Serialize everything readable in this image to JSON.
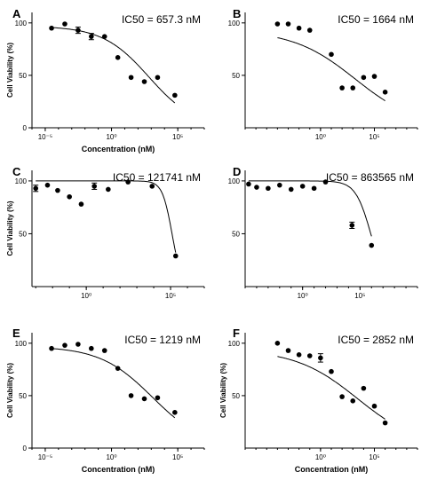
{
  "chart_data": [
    {
      "panel": "A",
      "type": "scatter",
      "ic50_label": "IC50 = 657.3 nM",
      "xlabel": "Concentration (nM)",
      "ylabel": "Cell Viability (%)",
      "xscale": "log",
      "xlim": [
        1e-06,
        10000000
      ],
      "ylim": [
        0,
        110
      ],
      "xticks": [
        {
          "v": 1e-05,
          "label": "10⁻⁵"
        },
        {
          "v": 1,
          "label": "10⁰"
        },
        {
          "v": 100000,
          "label": "10⁵"
        }
      ],
      "yticks": [
        0,
        50,
        100
      ],
      "points": [
        {
          "x": 3e-05,
          "y": 95
        },
        {
          "x": 0.0003,
          "y": 99
        },
        {
          "x": 0.003,
          "y": 93,
          "err": 3
        },
        {
          "x": 0.03,
          "y": 87,
          "err": 3
        },
        {
          "x": 0.3,
          "y": 87
        },
        {
          "x": 3,
          "y": 67
        },
        {
          "x": 30,
          "y": 48
        },
        {
          "x": 300,
          "y": 44
        },
        {
          "x": 3000,
          "y": 48
        },
        {
          "x": 60000,
          "y": 31
        }
      ],
      "fit": {
        "ic50": 657.3,
        "top": 97,
        "bottom": 0,
        "hill": 0.25
      }
    },
    {
      "panel": "B",
      "type": "scatter",
      "ic50_label": "IC50 = 1664 nM",
      "xlabel": "",
      "ylabel": "",
      "xscale": "log",
      "xlim": [
        1e-07,
        1000000000
      ],
      "ylim": [
        0,
        110
      ],
      "xticks": [
        {
          "v": 1,
          "label": "10⁰"
        },
        {
          "v": 100000,
          "label": "10⁵"
        }
      ],
      "yticks": [
        50,
        100
      ],
      "points": [
        {
          "x": 0.0001,
          "y": 99
        },
        {
          "x": 0.001,
          "y": 99
        },
        {
          "x": 0.01,
          "y": 95
        },
        {
          "x": 0.1,
          "y": 93
        },
        {
          "x": 10,
          "y": 70
        },
        {
          "x": 100,
          "y": 38
        },
        {
          "x": 1000,
          "y": 38
        },
        {
          "x": 10000,
          "y": 48
        },
        {
          "x": 100000,
          "y": 49
        },
        {
          "x": 1000000,
          "y": 34
        }
      ],
      "fit": {
        "ic50": 1664,
        "top": 93,
        "bottom": 0,
        "hill": 0.15
      }
    },
    {
      "panel": "C",
      "type": "scatter",
      "ic50_label": "IC50 = 121741 nM",
      "xlabel": "",
      "ylabel": "Cell Viability (%)",
      "xscale": "log",
      "xlim": [
        0.0006,
        10000000
      ],
      "ylim": [
        0,
        110
      ],
      "xticks": [
        {
          "v": 1,
          "label": "10⁰"
        },
        {
          "v": 100000,
          "label": "10⁵"
        }
      ],
      "yticks": [
        50,
        100
      ],
      "points": [
        {
          "x": 0.001,
          "y": 93,
          "err": 3
        },
        {
          "x": 0.005,
          "y": 96
        },
        {
          "x": 0.02,
          "y": 91
        },
        {
          "x": 0.1,
          "y": 85
        },
        {
          "x": 0.5,
          "y": 78
        },
        {
          "x": 3,
          "y": 95,
          "err": 3
        },
        {
          "x": 20,
          "y": 92
        },
        {
          "x": 300,
          "y": 99
        },
        {
          "x": 8000,
          "y": 95
        },
        {
          "x": 200000,
          "y": 29
        }
      ],
      "fit": {
        "ic50": 121741,
        "top": 100,
        "bottom": 0,
        "hill": 1.5
      }
    },
    {
      "panel": "D",
      "type": "scatter",
      "ic50_label": "IC50 = 863565 nM",
      "xlabel": "",
      "ylabel": "",
      "xscale": "log",
      "xlim": [
        1e-05,
        10000000000
      ],
      "ylim": [
        0,
        110
      ],
      "xticks": [
        {
          "v": 1,
          "label": "10⁰"
        },
        {
          "v": 100000,
          "label": "10⁵"
        }
      ],
      "yticks": [
        50,
        100
      ],
      "points": [
        {
          "x": 2e-05,
          "y": 97
        },
        {
          "x": 0.0001,
          "y": 94
        },
        {
          "x": 0.001,
          "y": 93
        },
        {
          "x": 0.01,
          "y": 96
        },
        {
          "x": 0.1,
          "y": 92
        },
        {
          "x": 1,
          "y": 95
        },
        {
          "x": 10,
          "y": 93
        },
        {
          "x": 100,
          "y": 99
        },
        {
          "x": 20000,
          "y": 58,
          "err": 3
        },
        {
          "x": 1000000,
          "y": 39
        }
      ],
      "fit": {
        "ic50": 863565,
        "top": 100,
        "bottom": 0,
        "hill": 0.65
      }
    },
    {
      "panel": "E",
      "type": "scatter",
      "ic50_label": "IC50 = 1219 nM",
      "xlabel": "Concentration (nM)",
      "ylabel": "Cell Viability (%)",
      "xscale": "log",
      "xlim": [
        1e-06,
        10000000
      ],
      "ylim": [
        0,
        110
      ],
      "xticks": [
        {
          "v": 1e-05,
          "label": "10⁻⁵"
        },
        {
          "v": 1,
          "label": "10⁰"
        },
        {
          "v": 100000,
          "label": "10⁵"
        }
      ],
      "yticks": [
        0,
        50,
        100
      ],
      "points": [
        {
          "x": 3e-05,
          "y": 95
        },
        {
          "x": 0.0003,
          "y": 98
        },
        {
          "x": 0.003,
          "y": 99
        },
        {
          "x": 0.03,
          "y": 95
        },
        {
          "x": 0.3,
          "y": 93
        },
        {
          "x": 3,
          "y": 76
        },
        {
          "x": 30,
          "y": 50
        },
        {
          "x": 300,
          "y": 47
        },
        {
          "x": 3000,
          "y": 48
        },
        {
          "x": 60000,
          "y": 34
        }
      ],
      "fit": {
        "ic50": 1219,
        "top": 97,
        "bottom": 0,
        "hill": 0.22
      }
    },
    {
      "panel": "F",
      "type": "scatter",
      "ic50_label": "IC50 = 2852 nM",
      "xlabel": "Concentration (nM)",
      "ylabel": "Cell Viability (%)",
      "xscale": "log",
      "xlim": [
        1e-07,
        1000000000
      ],
      "ylim": [
        0,
        110
      ],
      "xticks": [
        {
          "v": 1,
          "label": "10⁰"
        },
        {
          "v": 100000,
          "label": "10⁵"
        }
      ],
      "yticks": [
        50,
        100
      ],
      "points": [
        {
          "x": 0.0001,
          "y": 100
        },
        {
          "x": 0.001,
          "y": 93
        },
        {
          "x": 0.01,
          "y": 89
        },
        {
          "x": 0.1,
          "y": 88
        },
        {
          "x": 1,
          "y": 86,
          "err": 4
        },
        {
          "x": 10,
          "y": 73
        },
        {
          "x": 100,
          "y": 49
        },
        {
          "x": 1000,
          "y": 45
        },
        {
          "x": 10000,
          "y": 57
        },
        {
          "x": 100000,
          "y": 40
        },
        {
          "x": 1000000,
          "y": 24
        }
      ],
      "fit": {
        "ic50": 2852,
        "top": 94,
        "bottom": 0,
        "hill": 0.15
      }
    }
  ]
}
